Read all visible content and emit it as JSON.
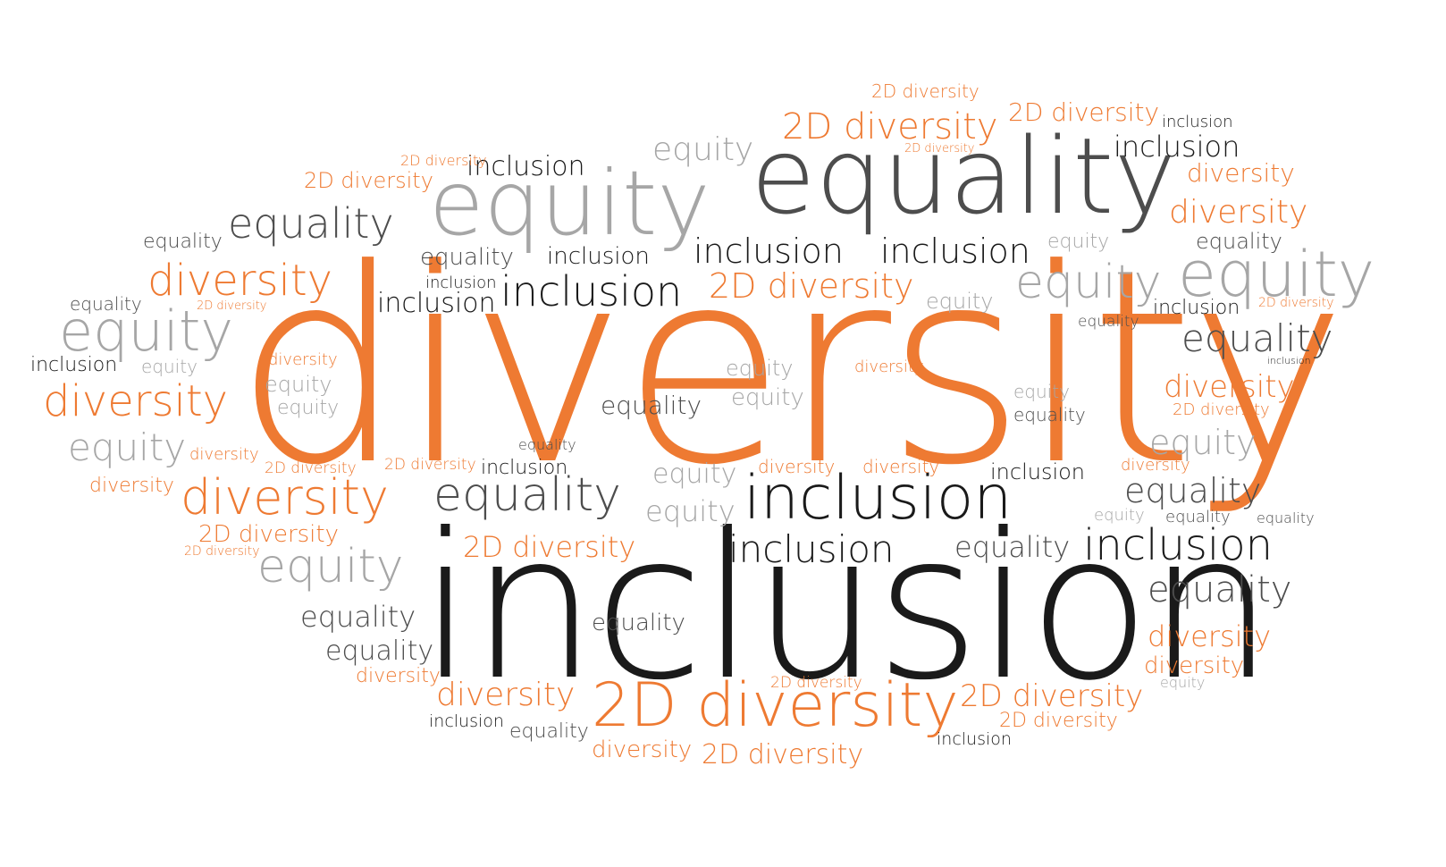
{
  "palette": {
    "orange": "#ee7a32",
    "black": "#1a1a1a",
    "dark_gray": "#4d4d4d",
    "light_gray": "#a6a6a6"
  },
  "words": [
    {
      "text": "diversity",
      "color": "#ee7a32"
    },
    {
      "text": "inclusion",
      "color": "#1a1a1a"
    },
    {
      "text": "equality",
      "color": "#4d4d4d"
    },
    {
      "text": "equity",
      "color": "#a6a6a6"
    },
    {
      "text": "2D diversity",
      "color": "#ee7a32"
    },
    {
      "text": "inclusion",
      "color": "#1a1a1a"
    },
    {
      "text": "equality",
      "color": "#4d4d4d"
    },
    {
      "text": "equity",
      "color": "#a6a6a6"
    },
    {
      "text": "diversity",
      "color": "#ee7a32"
    },
    {
      "text": "equity",
      "color": "#a6a6a6"
    },
    {
      "text": "diversity",
      "color": "#ee7a32"
    },
    {
      "text": "diversity",
      "color": "#ee7a32"
    },
    {
      "text": "inclusion",
      "color": "#1a1a1a"
    },
    {
      "text": "inclusion",
      "color": "#1a1a1a"
    },
    {
      "text": "inclusion",
      "color": "#1a1a1a"
    },
    {
      "text": "inclusion",
      "color": "#1a1a1a"
    },
    {
      "text": "inclusion",
      "color": "#1a1a1a"
    },
    {
      "text": "2D diversity",
      "color": "#ee7a32"
    },
    {
      "text": "2D diversity",
      "color": "#ee7a32"
    },
    {
      "text": "equality",
      "color": "#4d4d4d"
    },
    {
      "text": "equality",
      "color": "#4d4d4d"
    },
    {
      "text": "equality",
      "color": "#4d4d4d"
    },
    {
      "text": "equality",
      "color": "#4d4d4d"
    },
    {
      "text": "equity",
      "color": "#a6a6a6"
    },
    {
      "text": "equity",
      "color": "#a6a6a6"
    },
    {
      "text": "equity",
      "color": "#a6a6a6"
    },
    {
      "text": "equity",
      "color": "#a6a6a6"
    },
    {
      "text": "equity",
      "color": "#a6a6a6"
    },
    {
      "text": "equity",
      "color": "#a6a6a6"
    },
    {
      "text": "diversity",
      "color": "#ee7a32"
    },
    {
      "text": "diversity",
      "color": "#ee7a32"
    },
    {
      "text": "diversity",
      "color": "#ee7a32"
    },
    {
      "text": "diversity",
      "color": "#ee7a32"
    },
    {
      "text": "2D diversity",
      "color": "#ee7a32"
    },
    {
      "text": "2D diversity",
      "color": "#ee7a32"
    },
    {
      "text": "2D diversity",
      "color": "#ee7a32"
    },
    {
      "text": "2D diversity",
      "color": "#ee7a32"
    },
    {
      "text": "2D diversity",
      "color": "#ee7a32"
    },
    {
      "text": "inclusion",
      "color": "#1a1a1a"
    },
    {
      "text": "inclusion",
      "color": "#1a1a1a"
    },
    {
      "text": "inclusion",
      "color": "#1a1a1a"
    },
    {
      "text": "inclusion",
      "color": "#1a1a1a"
    },
    {
      "text": "equality",
      "color": "#4d4d4d"
    },
    {
      "text": "equality",
      "color": "#4d4d4d"
    },
    {
      "text": "equality",
      "color": "#4d4d4d"
    },
    {
      "text": "equality",
      "color": "#4d4d4d"
    },
    {
      "text": "equality",
      "color": "#4d4d4d"
    },
    {
      "text": "equality",
      "color": "#4d4d4d"
    },
    {
      "text": "equality",
      "color": "#4d4d4d"
    },
    {
      "text": "equity",
      "color": "#a6a6a6"
    },
    {
      "text": "equity",
      "color": "#a6a6a6"
    },
    {
      "text": "equity",
      "color": "#a6a6a6"
    },
    {
      "text": "equity",
      "color": "#a6a6a6"
    },
    {
      "text": "equity",
      "color": "#a6a6a6"
    },
    {
      "text": "equity",
      "color": "#a6a6a6"
    },
    {
      "text": "equity",
      "color": "#a6a6a6"
    },
    {
      "text": "equity",
      "color": "#a6a6a6"
    },
    {
      "text": "diversity",
      "color": "#ee7a32"
    },
    {
      "text": "diversity",
      "color": "#ee7a32"
    },
    {
      "text": "diversity",
      "color": "#ee7a32"
    },
    {
      "text": "diversity",
      "color": "#ee7a32"
    },
    {
      "text": "diversity",
      "color": "#ee7a32"
    },
    {
      "text": "diversity",
      "color": "#ee7a32"
    },
    {
      "text": "diversity",
      "color": "#ee7a32"
    },
    {
      "text": "diversity",
      "color": "#ee7a32"
    },
    {
      "text": "diversity",
      "color": "#ee7a32"
    },
    {
      "text": "diversity",
      "color": "#ee7a32"
    },
    {
      "text": "diversity",
      "color": "#ee7a32"
    },
    {
      "text": "2D diversity",
      "color": "#ee7a32"
    },
    {
      "text": "2D diversity",
      "color": "#ee7a32"
    },
    {
      "text": "2D diversity",
      "color": "#ee7a32"
    },
    {
      "text": "2D diversity",
      "color": "#ee7a32"
    },
    {
      "text": "2D diversity",
      "color": "#ee7a32"
    },
    {
      "text": "2D diversity",
      "color": "#ee7a32"
    },
    {
      "text": "2D diversity",
      "color": "#ee7a32"
    },
    {
      "text": "2D diversity",
      "color": "#ee7a32"
    },
    {
      "text": "2D diversity",
      "color": "#ee7a32"
    },
    {
      "text": "2D diversity",
      "color": "#ee7a32"
    },
    {
      "text": "2D diversity",
      "color": "#ee7a32"
    },
    {
      "text": "2D diversity",
      "color": "#ee7a32"
    },
    {
      "text": "inclusion",
      "color": "#1a1a1a"
    },
    {
      "text": "inclusion",
      "color": "#1a1a1a"
    },
    {
      "text": "inclusion",
      "color": "#1a1a1a"
    },
    {
      "text": "inclusion",
      "color": "#1a1a1a"
    },
    {
      "text": "inclusion",
      "color": "#1a1a1a"
    },
    {
      "text": "inclusion",
      "color": "#1a1a1a"
    },
    {
      "text": "inclusion",
      "color": "#1a1a1a"
    },
    {
      "text": "inclusion",
      "color": "#1a1a1a"
    },
    {
      "text": "inclusion",
      "color": "#1a1a1a"
    },
    {
      "text": "inclusion",
      "color": "#1a1a1a"
    },
    {
      "text": "equality",
      "color": "#4d4d4d"
    },
    {
      "text": "equality",
      "color": "#4d4d4d"
    },
    {
      "text": "equality",
      "color": "#4d4d4d"
    },
    {
      "text": "equality",
      "color": "#4d4d4d"
    },
    {
      "text": "equality",
      "color": "#4d4d4d"
    },
    {
      "text": "equality",
      "color": "#4d4d4d"
    },
    {
      "text": "equality",
      "color": "#4d4d4d"
    },
    {
      "text": "equality",
      "color": "#4d4d4d"
    },
    {
      "text": "equity",
      "color": "#a6a6a6"
    },
    {
      "text": "equity",
      "color": "#a6a6a6"
    },
    {
      "text": "equity",
      "color": "#a6a6a6"
    },
    {
      "text": "equity",
      "color": "#a6a6a6"
    },
    {
      "text": "equity",
      "color": "#a6a6a6"
    },
    {
      "text": "equity",
      "color": "#a6a6a6"
    },
    {
      "text": "equity",
      "color": "#a6a6a6"
    }
  ]
}
